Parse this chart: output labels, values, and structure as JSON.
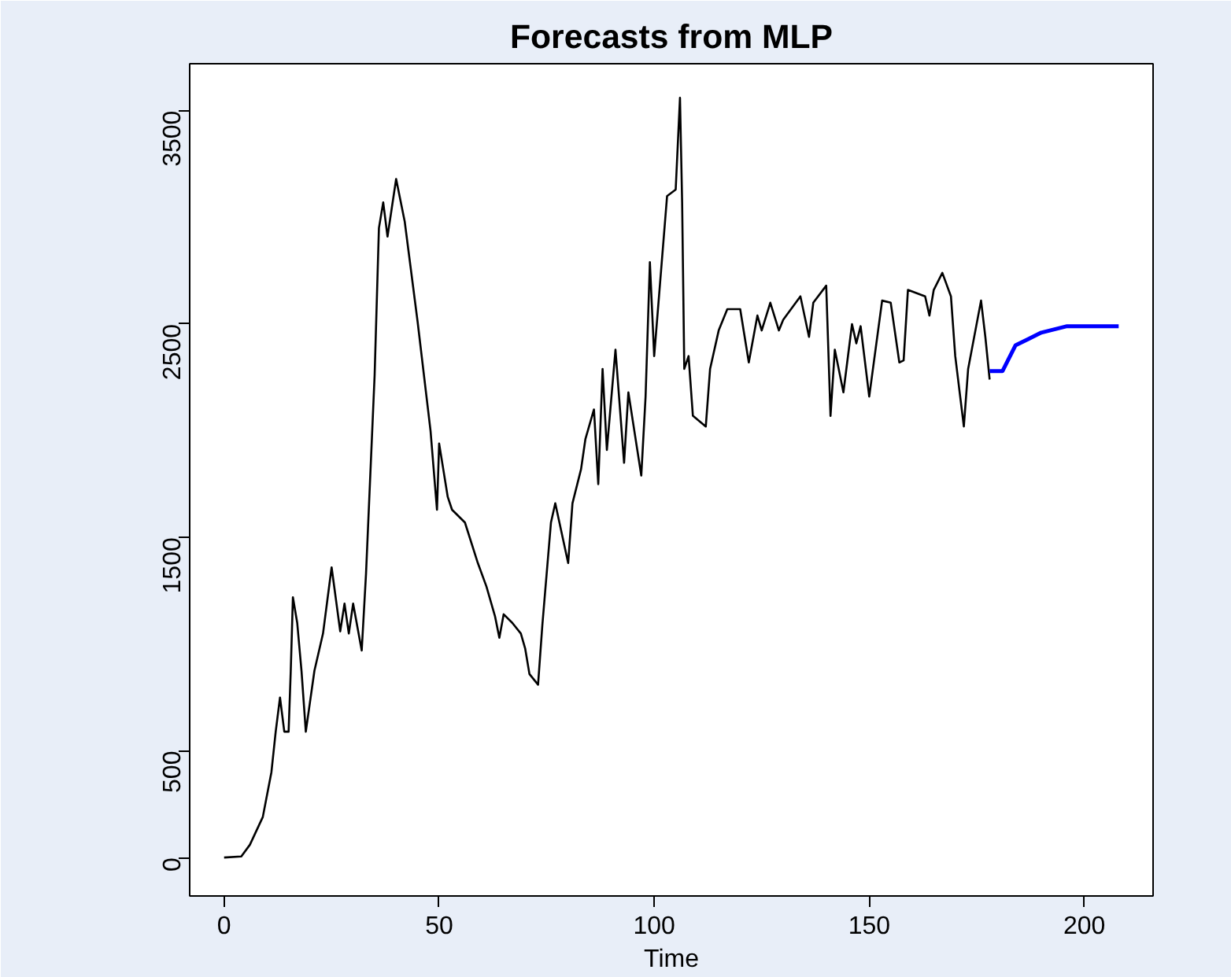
{
  "chart_data": {
    "type": "line",
    "title": "Forecasts from MLP",
    "xlabel": "Time",
    "xlim": [
      -8,
      216
    ],
    "ylim": [
      -180,
      3720
    ],
    "xticks": [
      0,
      50,
      100,
      150,
      200
    ],
    "yticks": [
      0,
      500,
      1500,
      2500,
      3500
    ],
    "grid": false,
    "marker": "none",
    "line_style": "solid",
    "series": [
      {
        "color": "#000000",
        "x": [
          0,
          4,
          6,
          9,
          11,
          12,
          13,
          14,
          15,
          15.5,
          16,
          17,
          18,
          19,
          21,
          23,
          25,
          27,
          28,
          29,
          30,
          32,
          33,
          35,
          36,
          37,
          38,
          40,
          42,
          45,
          48,
          49.5,
          50,
          52,
          53,
          56,
          59,
          61,
          63,
          64,
          65,
          67,
          69,
          70,
          71,
          73,
          74,
          76,
          77,
          80,
          81,
          83,
          84,
          86,
          87,
          88,
          89,
          91,
          93,
          94,
          97,
          98,
          99,
          100,
          103,
          105,
          106,
          106.5,
          107,
          108,
          109,
          112,
          113,
          115,
          117,
          120,
          122,
          124,
          125,
          127,
          129,
          130,
          134,
          136,
          137,
          140,
          141,
          142,
          144,
          146,
          147,
          148,
          150,
          153,
          155,
          157,
          158,
          159,
          163,
          164,
          165,
          167,
          169,
          170,
          172,
          173,
          176,
          177,
          178
        ],
        "values": [
          0,
          5,
          60,
          190,
          400,
          590,
          750,
          590,
          590,
          875,
          1220,
          1100,
          875,
          590,
          875,
          1050,
          1360,
          1060,
          1190,
          1050,
          1190,
          970,
          1330,
          2260,
          2950,
          3070,
          2910,
          3180,
          2980,
          2510,
          2000,
          1630,
          1940,
          1690,
          1630,
          1570,
          1380,
          1270,
          1130,
          1030,
          1140,
          1100,
          1050,
          980,
          860,
          810,
          1090,
          1570,
          1660,
          1380,
          1660,
          1820,
          1960,
          2100,
          1750,
          2290,
          1910,
          2380,
          1850,
          2180,
          1790,
          2160,
          2790,
          2350,
          3100,
          3130,
          3560,
          3070,
          2290,
          2350,
          2070,
          2020,
          2290,
          2470,
          2570,
          2570,
          2320,
          2540,
          2470,
          2600,
          2470,
          2520,
          2630,
          2440,
          2600,
          2680,
          2070,
          2380,
          2180,
          2500,
          2410,
          2490,
          2160,
          2610,
          2600,
          2320,
          2330,
          2660,
          2630,
          2540,
          2660,
          2740,
          2630,
          2350,
          2020,
          2290,
          2610,
          2440,
          2240
        ]
      },
      {
        "color": "#0000ff",
        "x": [
          178,
          181,
          184,
          187,
          190,
          192,
          196,
          208
        ],
        "values": [
          2280,
          2280,
          2400,
          2430,
          2460,
          2470,
          2490,
          2490
        ]
      }
    ]
  }
}
